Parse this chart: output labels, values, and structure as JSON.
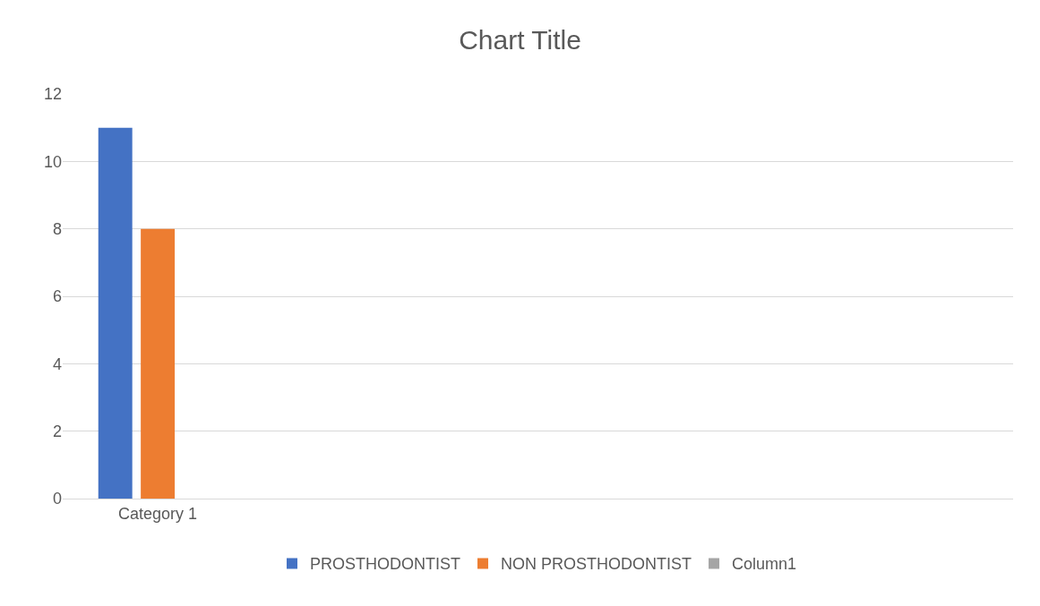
{
  "chart_data": {
    "type": "bar",
    "title": "Chart Title",
    "categories": [
      "Category 1",
      null,
      null,
      null,
      null
    ],
    "series": [
      {
        "name": "PROSTHODONTIST",
        "color": "#4472c4",
        "values": [
          11,
          null,
          null,
          null,
          null
        ]
      },
      {
        "name": "NON PROSTHODONTIST",
        "color": "#ed7d31",
        "values": [
          8,
          null,
          null,
          null,
          null
        ]
      },
      {
        "name": "Column1",
        "color": "#a5a5a5",
        "values": [
          null,
          null,
          null,
          null,
          null
        ]
      }
    ],
    "ylim": [
      0,
      12
    ],
    "yticks": [
      0,
      2,
      4,
      6,
      8,
      10,
      12
    ],
    "grid": "y",
    "legend": "bottom"
  }
}
